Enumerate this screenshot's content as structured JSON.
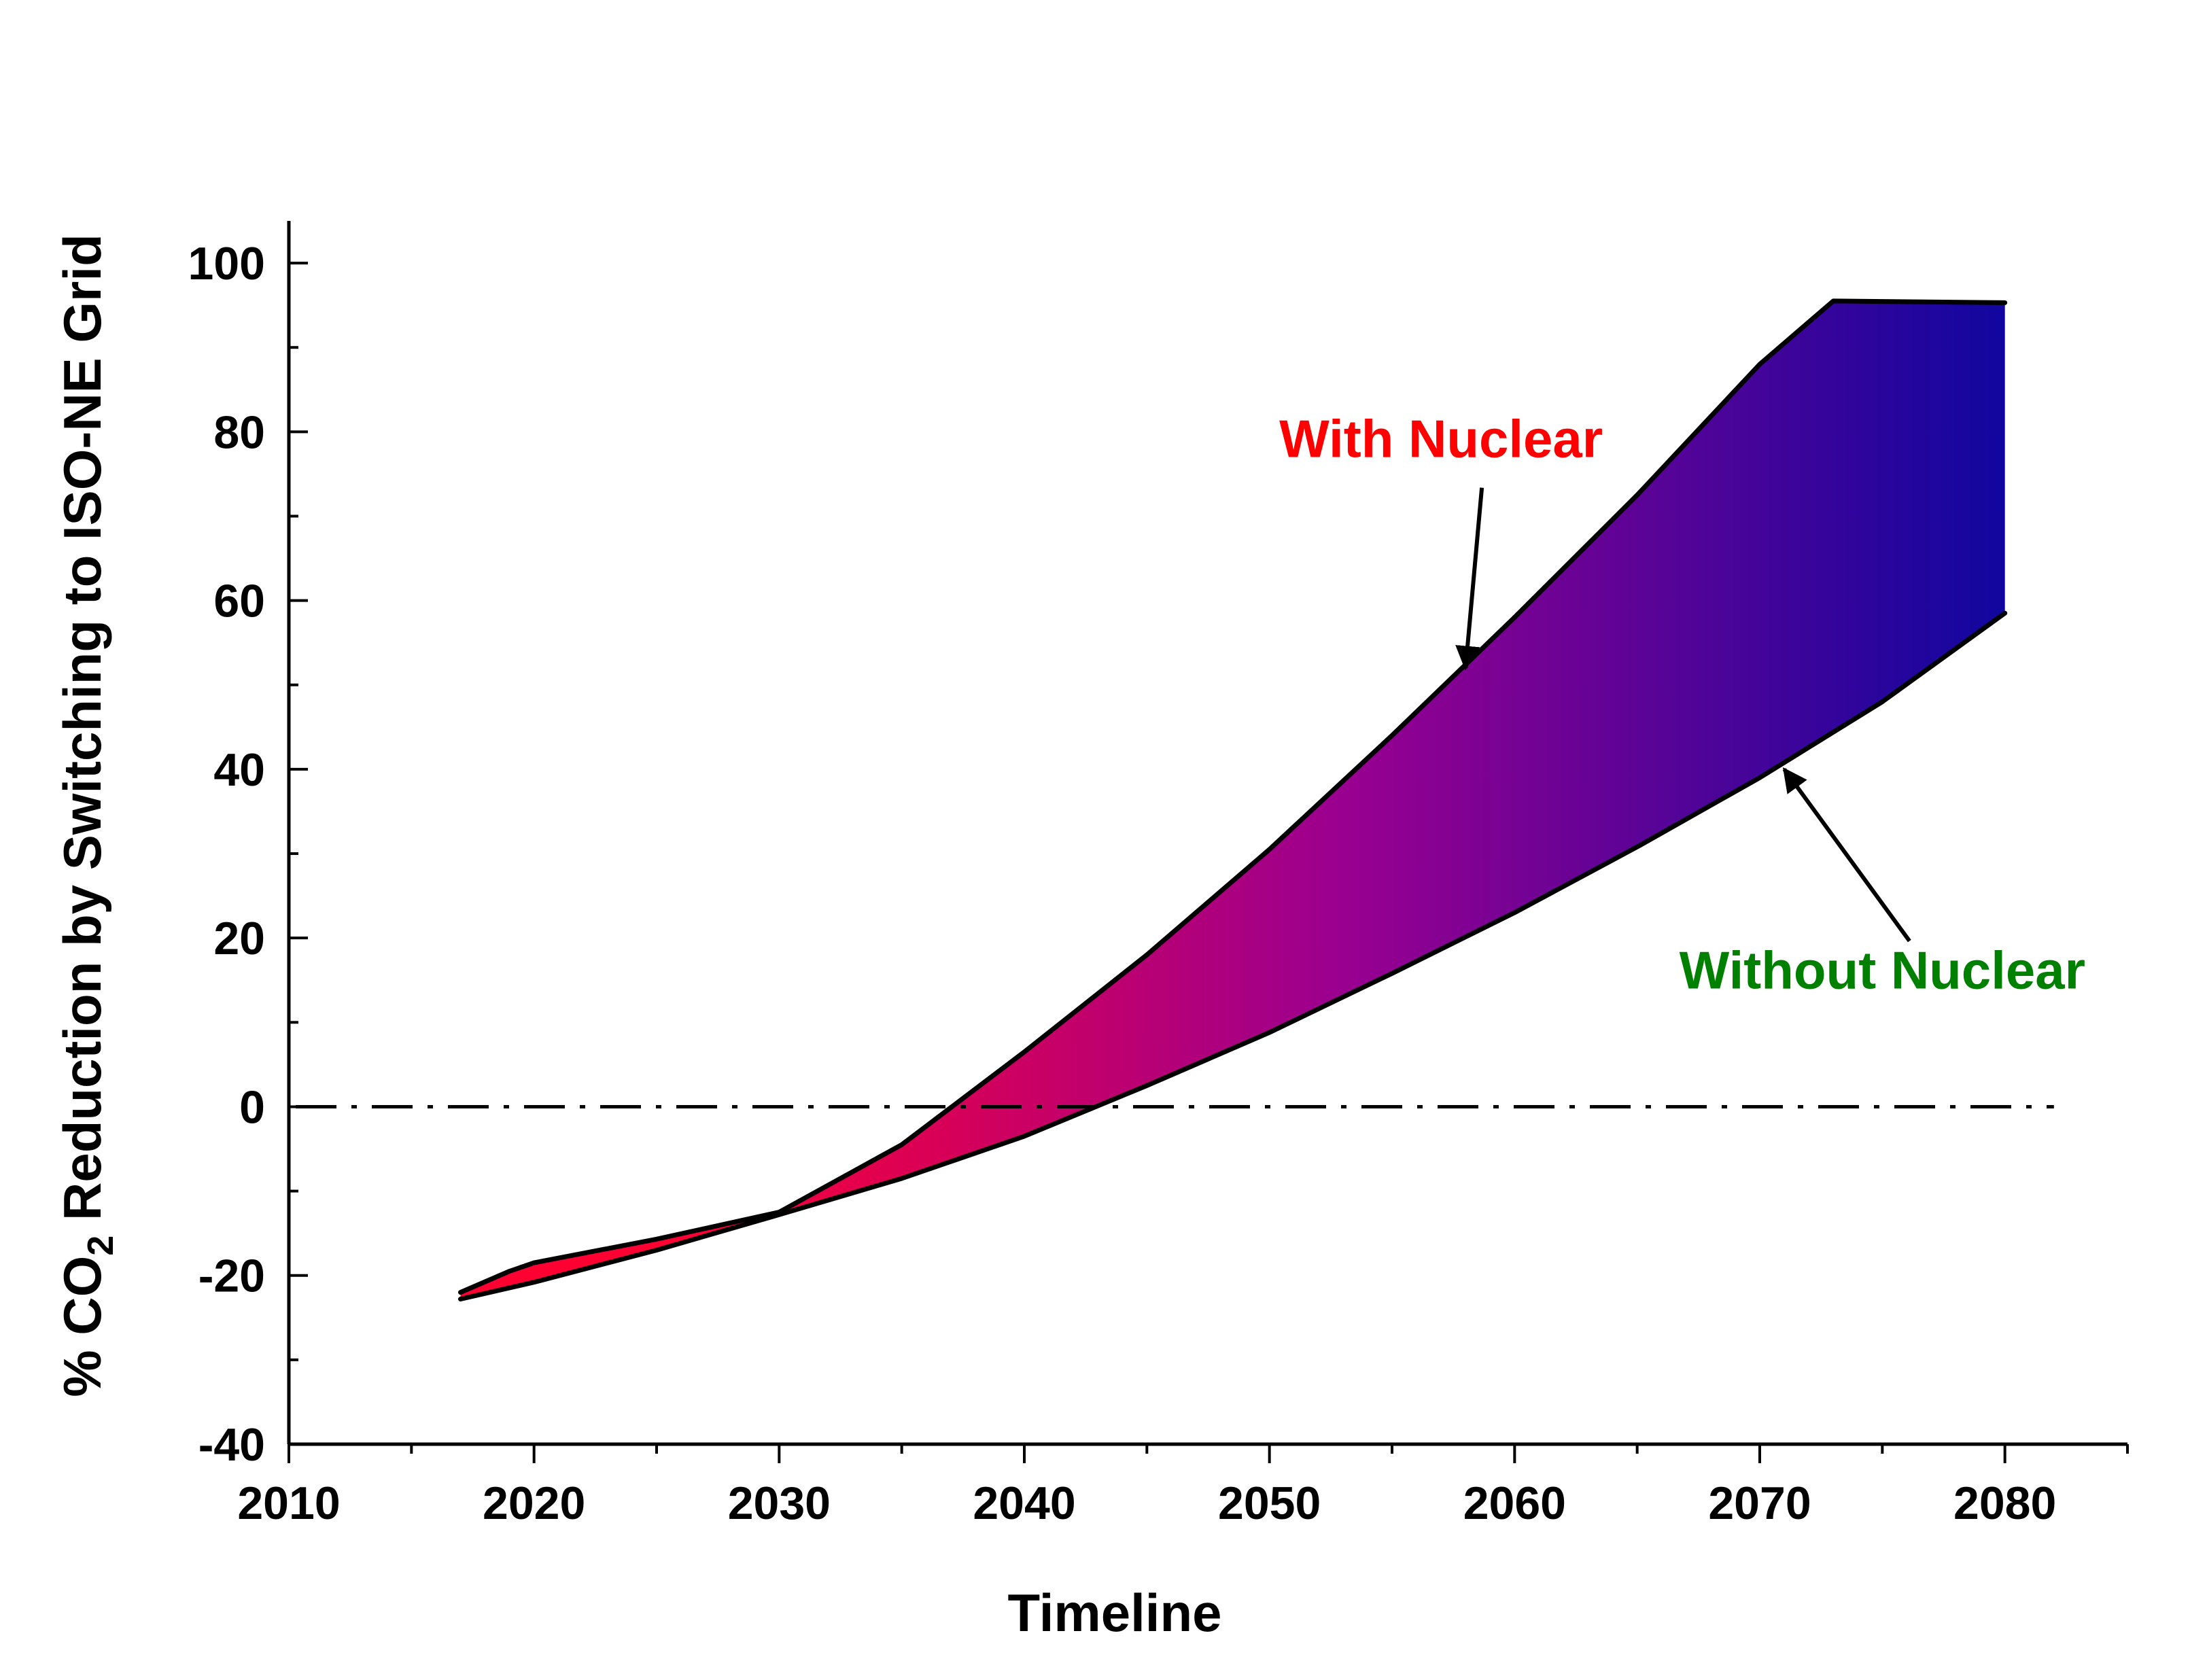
{
  "chart_data": {
    "type": "area",
    "title": "",
    "xlabel": "Timeline",
    "ylabel": {
      "prefix": "% CO",
      "subscript": "2",
      "suffix": " Reduction by Switching to ISO-NE Grid"
    },
    "xlim": [
      2010,
      2085
    ],
    "ylim": [
      -40,
      105
    ],
    "x_ticks": [
      2010,
      2020,
      2030,
      2040,
      2050,
      2060,
      2070,
      2080
    ],
    "y_ticks": [
      -40,
      -20,
      0,
      20,
      40,
      60,
      80,
      100
    ],
    "x_tick_labels": [
      "2010",
      "2020",
      "2030",
      "2040",
      "2050",
      "2060",
      "2070",
      "2080"
    ],
    "y_tick_labels": [
      "-40",
      "-20",
      "0",
      "20",
      "40",
      "60",
      "80",
      "100"
    ],
    "grid": false,
    "reference_line": {
      "y": 0,
      "style": "dash-dot"
    },
    "fill_gradient": [
      "#ff0033",
      "#10069f"
    ],
    "series": [
      {
        "name": "With Nuclear",
        "color": "#ff0000",
        "x": [
          2017,
          2019,
          2020,
          2025,
          2030,
          2035,
          2040,
          2045,
          2050,
          2055,
          2060,
          2065,
          2070,
          2073,
          2080
        ],
        "values": [
          -22,
          -19.5,
          -18.5,
          -15.7,
          -12.5,
          -4.5,
          6.5,
          18.0,
          30.5,
          44.0,
          58.0,
          72.5,
          88.0,
          95.5,
          95.3
        ]
      },
      {
        "name": "Without Nuclear",
        "color": "#008000",
        "x": [
          2017,
          2020,
          2025,
          2030,
          2035,
          2040,
          2045,
          2050,
          2055,
          2060,
          2065,
          2070,
          2075,
          2080
        ],
        "values": [
          -22.8,
          -20.8,
          -17.0,
          -12.8,
          -8.5,
          -3.5,
          2.5,
          8.8,
          15.8,
          23.0,
          30.8,
          39.0,
          48.0,
          58.5
        ]
      }
    ],
    "annotations": [
      {
        "text": "With Nuclear",
        "color": "#ff0000",
        "x": 2057,
        "y": 77,
        "arrow_to": [
          2058,
          52
        ]
      },
      {
        "text": "Without Nuclear",
        "color": "#008000",
        "x": 2075,
        "y": 14,
        "arrow_to": [
          2071,
          40
        ]
      }
    ]
  }
}
